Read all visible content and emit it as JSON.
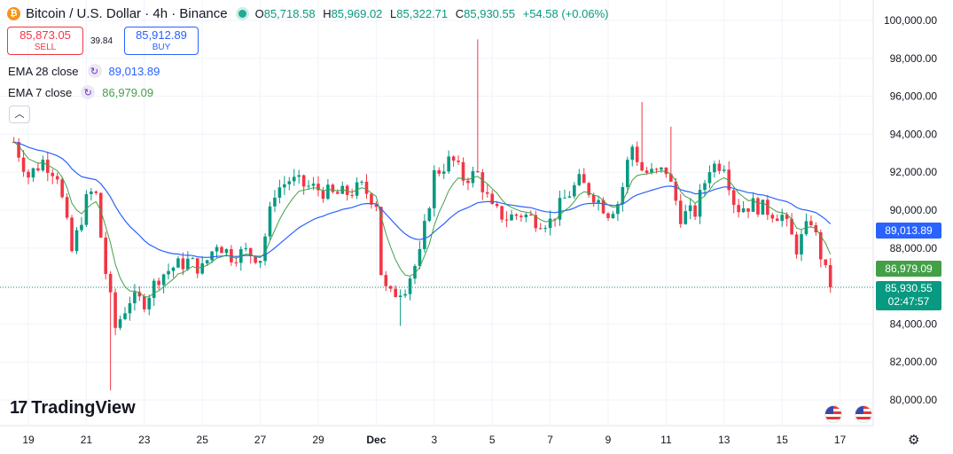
{
  "header": {
    "symbol_title": "Bitcoin / U.S. Dollar · 4h · Binance",
    "coin_icon": "bitcoin-icon",
    "open_label": "O",
    "open_value": "85,718.58",
    "high_label": "H",
    "high_value": "85,969.02",
    "low_label": "L",
    "low_value": "85,322.71",
    "close_label": "C",
    "close_value": "85,930.55",
    "change": "+54.58 (+0.06%)"
  },
  "trade": {
    "sell_price": "85,873.05",
    "sell_label": "SELL",
    "spread": "39.84",
    "buy_price": "85,912.89",
    "buy_label": "BUY"
  },
  "indicators": [
    {
      "label": "EMA 28 close",
      "value": "89,013.89",
      "color": "#2962ff"
    },
    {
      "label": "EMA 7 close",
      "value": "86,979.09",
      "color": "#43a047"
    }
  ],
  "price_tags": {
    "ema28": "89,013.89",
    "ema7": "86,979.09",
    "last": "85,930.55",
    "countdown": "02:47:57"
  },
  "brand": "TradingView",
  "colors": {
    "up": "#089981",
    "down": "#f23645",
    "ema28": "#2962ff",
    "ema7": "#43a047",
    "grid": "#f0f3fa"
  },
  "chart_data": {
    "type": "candlestick",
    "title": "Bitcoin / U.S. Dollar · 4h · Binance",
    "ylim": [
      79000,
      101000
    ],
    "y_ticks": [
      "80,000.00",
      "82,000.00",
      "84,000.00",
      "86,000.00",
      "88,000.00",
      "90,000.00",
      "92,000.00",
      "94,000.00",
      "96,000.00",
      "98,000.00",
      "100,000.00"
    ],
    "x_ticks": [
      "19",
      "21",
      "23",
      "25",
      "27",
      "29",
      "Dec",
      "3",
      "5",
      "7",
      "9",
      "11",
      "13",
      "15",
      "17"
    ],
    "x_tick_positions_days": [
      0,
      2,
      4,
      6,
      8,
      10,
      12,
      14,
      16,
      18,
      20,
      22,
      24,
      26,
      28
    ],
    "candles_per_day": 6,
    "daily_anchors": [
      [
        -0.5,
        93600
      ],
      [
        0,
        91800
      ],
      [
        0.5,
        92600
      ],
      [
        1,
        91900
      ],
      [
        1.5,
        87800
      ],
      [
        2,
        90500
      ],
      [
        2.3,
        91200
      ],
      [
        2.6,
        87300
      ],
      [
        3,
        83800
      ],
      [
        3.5,
        85300
      ],
      [
        4,
        85200
      ],
      [
        4.5,
        86500
      ],
      [
        5,
        87000
      ],
      [
        5.5,
        87300
      ],
      [
        6,
        86900
      ],
      [
        6.5,
        88300
      ],
      [
        7,
        87600
      ],
      [
        7.5,
        87800
      ],
      [
        8,
        87500
      ],
      [
        8.5,
        91000
      ],
      [
        9,
        91600
      ],
      [
        9.5,
        91300
      ],
      [
        10,
        91100
      ],
      [
        10.5,
        90800
      ],
      [
        11,
        90900
      ],
      [
        11.5,
        91200
      ],
      [
        12,
        90400
      ],
      [
        12.2,
        86000
      ],
      [
        12.5,
        85500
      ],
      [
        13,
        86000
      ],
      [
        13.5,
        87600
      ],
      [
        14,
        91900
      ],
      [
        14.6,
        92700
      ],
      [
        15,
        91700
      ],
      [
        15.5,
        91900
      ],
      [
        16,
        90000
      ],
      [
        16.5,
        89600
      ],
      [
        17,
        89800
      ],
      [
        17.5,
        89500
      ],
      [
        18,
        89400
      ],
      [
        18.5,
        90600
      ],
      [
        19,
        91500
      ],
      [
        19.5,
        90800
      ],
      [
        20,
        89900
      ],
      [
        20.4,
        90500
      ],
      [
        20.8,
        93500
      ],
      [
        21.2,
        92000
      ],
      [
        21.6,
        91900
      ],
      [
        22,
        92100
      ],
      [
        22.5,
        89700
      ],
      [
        23,
        89900
      ],
      [
        23.5,
        92300
      ],
      [
        24,
        92500
      ],
      [
        24.4,
        90100
      ],
      [
        25,
        90300
      ],
      [
        25.5,
        90000
      ],
      [
        26,
        89700
      ],
      [
        26.5,
        88000
      ],
      [
        27,
        89500
      ],
      [
        27.5,
        86700
      ],
      [
        27.8,
        85900
      ]
    ],
    "spikes": [
      {
        "day": 15.5,
        "high": 99000
      },
      {
        "day": 2.8,
        "low": 80500
      },
      {
        "day": 12.8,
        "low": 83900
      },
      {
        "day": 21.1,
        "high": 95700
      },
      {
        "day": 22.1,
        "high": 94400
      }
    ],
    "series": [
      {
        "name": "EMA 28 close",
        "last": 89013.89
      },
      {
        "name": "EMA 7 close",
        "last": 86979.09
      }
    ],
    "last_price": 85930.55
  }
}
